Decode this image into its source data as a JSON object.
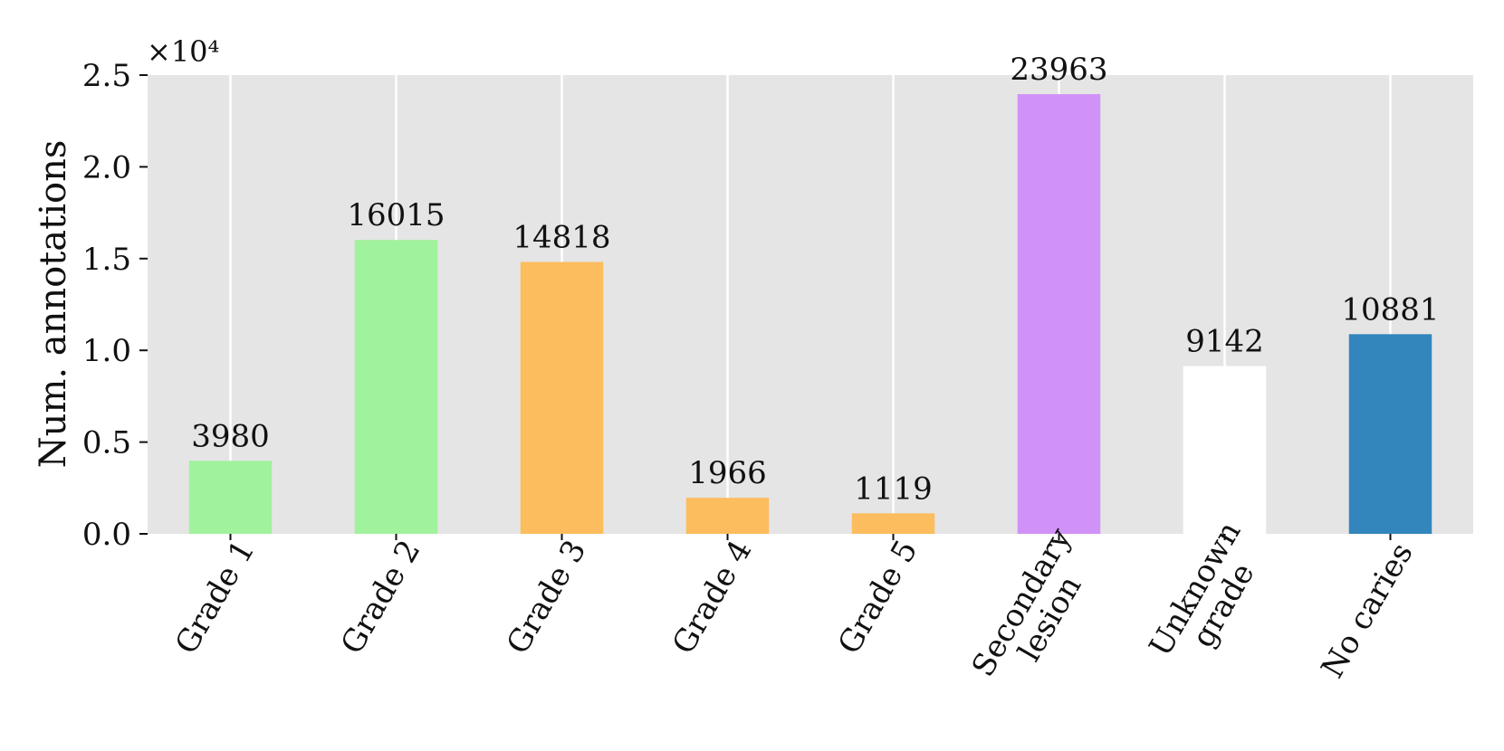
{
  "chart_data": {
    "type": "bar",
    "categories": [
      "Grade 1",
      "Grade 2",
      "Grade 3",
      "Grade 4",
      "Grade 5",
      "Secondary lesion",
      "Unknown grade",
      "No caries"
    ],
    "category_lines": [
      [
        "Grade 1"
      ],
      [
        "Grade 2"
      ],
      [
        "Grade 3"
      ],
      [
        "Grade 4"
      ],
      [
        "Grade 5"
      ],
      [
        "Secondary",
        "lesion"
      ],
      [
        "Unknown",
        "grade"
      ],
      [
        "No caries"
      ]
    ],
    "values": [
      3980,
      16015,
      14818,
      1966,
      1119,
      23963,
      9142,
      10881
    ],
    "value_labels": [
      "3980",
      "16015",
      "14818",
      "1966",
      "1119",
      "23963",
      "9142",
      "10881"
    ],
    "colors": [
      "#a1f29d",
      "#a1f29d",
      "#fcbd5e",
      "#fcbd5e",
      "#fcbd5e",
      "#d192f8",
      "#ffffff",
      "#3286bc"
    ],
    "title": "",
    "xlabel": "",
    "ylabel": "Num. annotations",
    "y_multiplier": "×10⁴",
    "y_scale": 10000,
    "ylim": [
      0,
      25000
    ],
    "y_ticks": [
      0,
      5000,
      10000,
      15000,
      20000,
      25000
    ],
    "y_tick_labels": [
      "0.0",
      "0.5",
      "1.0",
      "1.5",
      "2.0",
      "2.5"
    ],
    "grid": true,
    "background": "#e5e5e5",
    "grid_color": "#ffffff",
    "legend": "none"
  }
}
